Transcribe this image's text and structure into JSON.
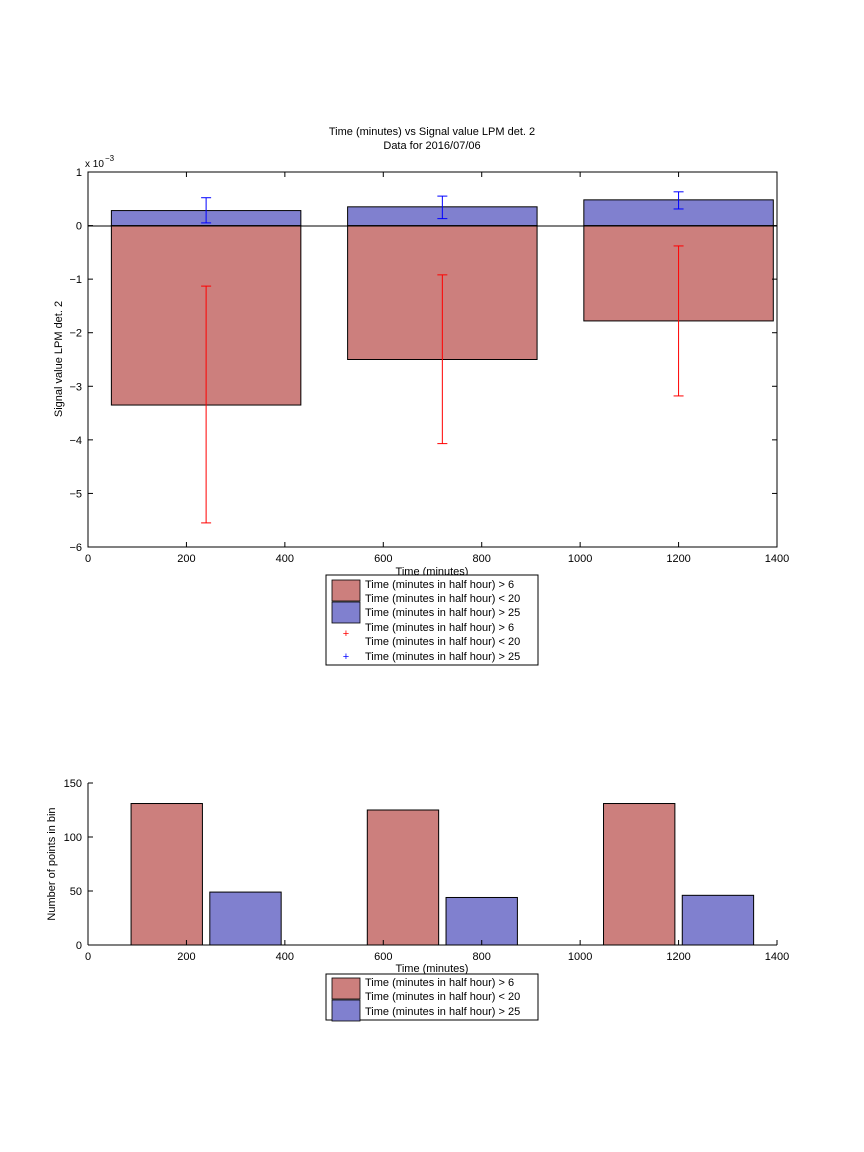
{
  "colors": {
    "red_fill": "#cc7f7d",
    "blue_fill": "#8080cf",
    "red_err": "#ff0000",
    "blue_err": "#0000ff",
    "axis": "#000000"
  },
  "chart_data": [
    {
      "type": "bar",
      "title": "Time (minutes) vs Signal value LPM det. 2",
      "subtitle": "Data for 2016/07/06",
      "xlabel": "Time (minutes)",
      "ylabel": "Signal value LPM det. 2",
      "y_exponent_label": "x 10",
      "y_exponent": "−3",
      "xlim": [
        0,
        1400
      ],
      "ylim": [
        -6,
        1
      ],
      "x_ticks": [
        0,
        200,
        400,
        600,
        800,
        1000,
        1200,
        1400
      ],
      "y_ticks": [
        -6,
        -5,
        -4,
        -3,
        -2,
        -1,
        0,
        1
      ],
      "bar_width": 385,
      "bars_red": {
        "name": "Time (minutes in half hour) > 6\nTime (minutes in half hour) < 20",
        "x": [
          240,
          720,
          1200
        ],
        "values": [
          -3.35,
          -2.5,
          -1.78
        ]
      },
      "bars_blue": {
        "name": "Time (minutes in half hour) > 25",
        "x": [
          240,
          720,
          1200
        ],
        "values": [
          0.28,
          0.35,
          0.48
        ]
      },
      "errorbars_red": {
        "x": [
          240,
          720,
          1200
        ],
        "center": [
          -3.35,
          -2.5,
          -1.78
        ],
        "lower": [
          -5.55,
          -4.07,
          -3.18
        ],
        "upper": [
          -1.13,
          -0.92,
          -0.38
        ]
      },
      "errorbars_blue": {
        "x": [
          240,
          720,
          1200
        ],
        "center": [
          0.28,
          0.35,
          0.48
        ],
        "lower": [
          0.05,
          0.13,
          0.31
        ],
        "upper": [
          0.52,
          0.55,
          0.63
        ]
      },
      "legend": [
        {
          "kind": "patch",
          "color": "red",
          "lines": [
            "Time (minutes in half hour) > 6",
            "Time (minutes in half hour) < 20"
          ]
        },
        {
          "kind": "patch",
          "color": "blue",
          "lines": [
            "Time (minutes in half hour) > 25"
          ]
        },
        {
          "kind": "marker",
          "color": "red",
          "lines": [
            "Time (minutes in half hour) > 6",
            "Time (minutes in half hour) < 20"
          ]
        },
        {
          "kind": "marker",
          "color": "blue",
          "lines": [
            "Time (minutes in half hour) > 25"
          ]
        }
      ],
      "legend_placement": "below-center",
      "grid": false
    },
    {
      "type": "bar",
      "xlabel": "Time (minutes)",
      "ylabel": "Number of points in bin",
      "xlim": [
        0,
        1400
      ],
      "ylim": [
        0,
        150
      ],
      "x_ticks": [
        0,
        200,
        400,
        600,
        800,
        1000,
        1200,
        1400
      ],
      "y_ticks": [
        0,
        50,
        100,
        150
      ],
      "bar_width": 145,
      "series": [
        {
          "name": "Time (minutes in half hour) > 6\nTime (minutes in half hour) < 20",
          "color": "red",
          "x": [
            160,
            640,
            1120
          ],
          "values": [
            131,
            125,
            131
          ]
        },
        {
          "name": "Time (minutes in half hour) > 25",
          "color": "blue",
          "x": [
            320,
            800,
            1280
          ],
          "values": [
            49,
            44,
            46
          ]
        }
      ],
      "legend": [
        {
          "kind": "patch",
          "color": "red",
          "lines": [
            "Time (minutes in half hour) > 6",
            "Time (minutes in half hour) < 20"
          ]
        },
        {
          "kind": "patch",
          "color": "blue",
          "lines": [
            "Time (minutes in half hour) > 25"
          ]
        }
      ],
      "legend_placement": "below-center",
      "grid": false
    }
  ]
}
